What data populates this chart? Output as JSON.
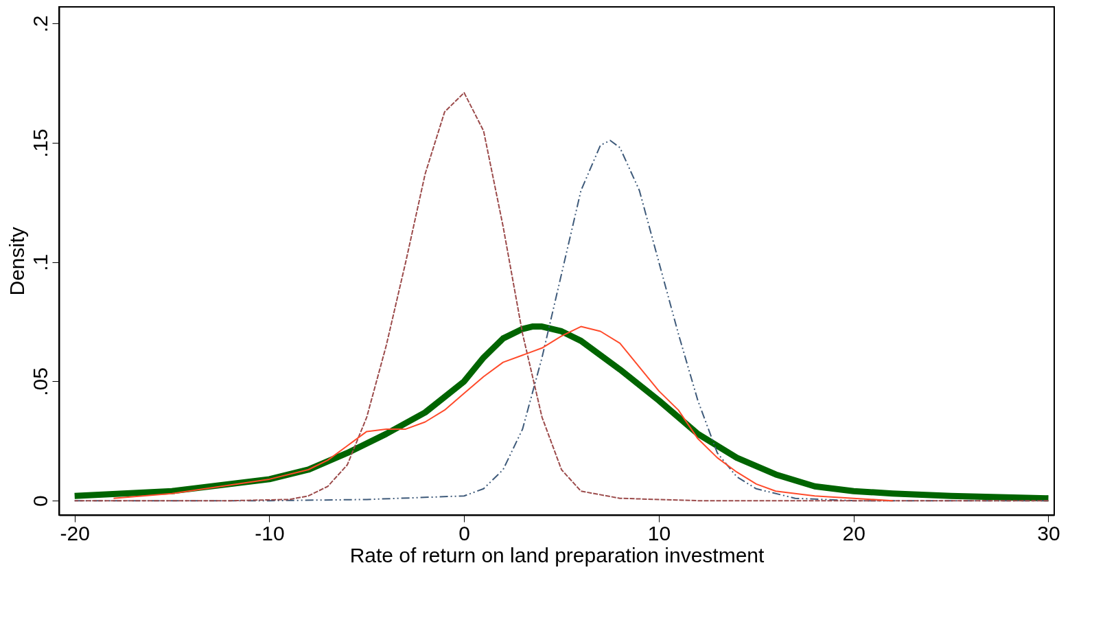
{
  "chart_data": {
    "type": "line",
    "xlabel": "Rate of return on land preparation investment",
    "ylabel": "Density",
    "xlim": [
      -20.8,
      30.3
    ],
    "ylim": [
      -0.006,
      0.207
    ],
    "xticks": [
      -20,
      -10,
      0,
      10,
      20,
      30
    ],
    "yticks": [
      {
        "value": 0,
        "label": "0"
      },
      {
        "value": 0.05,
        "label": ".05"
      },
      {
        "value": 0.1,
        "label": ".1"
      },
      {
        "value": 0.15,
        "label": ".15"
      },
      {
        "value": 0.2,
        "label": ".2"
      }
    ],
    "grid": false,
    "marker": "none",
    "series": [
      {
        "color": "#006400",
        "line_style": "solid",
        "x": [
          -20,
          -15,
          -10,
          -8,
          -6,
          -4,
          -2,
          0,
          1,
          2,
          3,
          3.5,
          4,
          5,
          6,
          8,
          10,
          12,
          14,
          16,
          18,
          20,
          22,
          25,
          30
        ],
        "values": [
          0.002,
          0.004,
          0.009,
          0.013,
          0.02,
          0.028,
          0.037,
          0.05,
          0.06,
          0.068,
          0.072,
          0.073,
          0.073,
          0.071,
          0.067,
          0.055,
          0.042,
          0.028,
          0.018,
          0.011,
          0.006,
          0.004,
          0.003,
          0.002,
          0.001
        ]
      },
      {
        "color": "#ff4a2a",
        "line_style": "solid",
        "x": [
          -18,
          -15,
          -10,
          -8,
          -7,
          -6,
          -5,
          -4,
          -3,
          -2,
          -1,
          0,
          1,
          2,
          3,
          4,
          5,
          6,
          7,
          8,
          9,
          10,
          11,
          12,
          13,
          14,
          15,
          16,
          18,
          20,
          22
        ],
        "values": [
          0.001,
          0.003,
          0.009,
          0.013,
          0.017,
          0.023,
          0.029,
          0.03,
          0.03,
          0.033,
          0.038,
          0.045,
          0.052,
          0.058,
          0.061,
          0.064,
          0.069,
          0.073,
          0.071,
          0.066,
          0.056,
          0.046,
          0.038,
          0.026,
          0.018,
          0.012,
          0.007,
          0.004,
          0.002,
          0.001,
          0
        ]
      },
      {
        "color": "#9b4a4a",
        "line_style": "dashed",
        "x": [
          -20,
          -12,
          -9,
          -8,
          -7,
          -6,
          -5,
          -4,
          -3,
          -2,
          -1,
          0,
          1,
          2,
          3,
          4,
          5,
          6,
          8,
          12,
          30
        ],
        "values": [
          0,
          0,
          0.0005,
          0.002,
          0.006,
          0.015,
          0.035,
          0.065,
          0.1,
          0.137,
          0.163,
          0.171,
          0.155,
          0.115,
          0.07,
          0.035,
          0.013,
          0.004,
          0.001,
          0,
          0
        ]
      },
      {
        "color": "#3e5a7a",
        "line_style": "dotted",
        "x": [
          -20,
          -10,
          -5,
          0,
          1,
          2,
          3,
          4,
          5,
          6,
          7,
          7.5,
          8,
          9,
          10,
          11,
          12,
          13,
          14,
          15,
          17,
          20,
          30
        ],
        "values": [
          0,
          0,
          0.0005,
          0.002,
          0.005,
          0.013,
          0.03,
          0.06,
          0.095,
          0.13,
          0.149,
          0.151,
          0.148,
          0.13,
          0.1,
          0.07,
          0.042,
          0.02,
          0.01,
          0.005,
          0.001,
          0,
          0
        ]
      }
    ]
  }
}
